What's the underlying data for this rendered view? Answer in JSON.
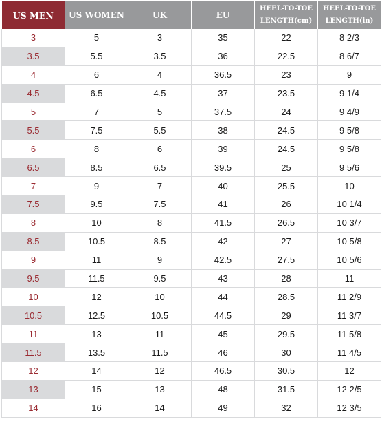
{
  "table": {
    "headers": [
      {
        "lines": [
          "US MEN"
        ]
      },
      {
        "lines": [
          "US WOMEN"
        ]
      },
      {
        "lines": [
          "UK"
        ]
      },
      {
        "lines": [
          "EU"
        ]
      },
      {
        "lines": [
          "HEEL-TO-TOE",
          "LENGTH(cm)"
        ]
      },
      {
        "lines": [
          "HEEL-TO-TOE",
          "LENGTH(in)"
        ]
      }
    ],
    "rows": [
      [
        "3",
        "5",
        "3",
        "35",
        "22",
        "8 2/3"
      ],
      [
        "3.5",
        "5.5",
        "3.5",
        "36",
        "22.5",
        "8 6/7"
      ],
      [
        "4",
        "6",
        "4",
        "36.5",
        "23",
        "9"
      ],
      [
        "4.5",
        "6.5",
        "4.5",
        "37",
        "23.5",
        "9 1/4"
      ],
      [
        "5",
        "7",
        "5",
        "37.5",
        "24",
        "9 4/9"
      ],
      [
        "5.5",
        "7.5",
        "5.5",
        "38",
        "24.5",
        "9 5/8"
      ],
      [
        "6",
        "8",
        "6",
        "39",
        "24.5",
        "9 5/8"
      ],
      [
        "6.5",
        "8.5",
        "6.5",
        "39.5",
        "25",
        "9 5/6"
      ],
      [
        "7",
        "9",
        "7",
        "40",
        "25.5",
        "10"
      ],
      [
        "7.5",
        "9.5",
        "7.5",
        "41",
        "26",
        "10 1/4"
      ],
      [
        "8",
        "10",
        "8",
        "41.5",
        "26.5",
        "10 3/7"
      ],
      [
        "8.5",
        "10.5",
        "8.5",
        "42",
        "27",
        "10 5/8"
      ],
      [
        "9",
        "11",
        "9",
        "42.5",
        "27.5",
        "10 5/6"
      ],
      [
        "9.5",
        "11.5",
        "9.5",
        "43",
        "28",
        "11"
      ],
      [
        "10",
        "12",
        "10",
        "44",
        "28.5",
        "11 2/9"
      ],
      [
        "10.5",
        "12.5",
        "10.5",
        "44.5",
        "29",
        "11 3/7"
      ],
      [
        "11",
        "13",
        "11",
        "45",
        "29.5",
        "11 5/8"
      ],
      [
        "11.5",
        "13.5",
        "11.5",
        "46",
        "30",
        "11 4/5"
      ],
      [
        "12",
        "14",
        "12",
        "46.5",
        "30.5",
        "12"
      ],
      [
        "13",
        "15",
        "13",
        "48",
        "31.5",
        "12 2/5"
      ],
      [
        "14",
        "16",
        "14",
        "49",
        "32",
        "12 3/5"
      ]
    ]
  },
  "colors": {
    "men_header": "#8e2b33",
    "other_header": "#98999b",
    "men_text": "#9a2a31",
    "stripe": "#d9dadc"
  }
}
